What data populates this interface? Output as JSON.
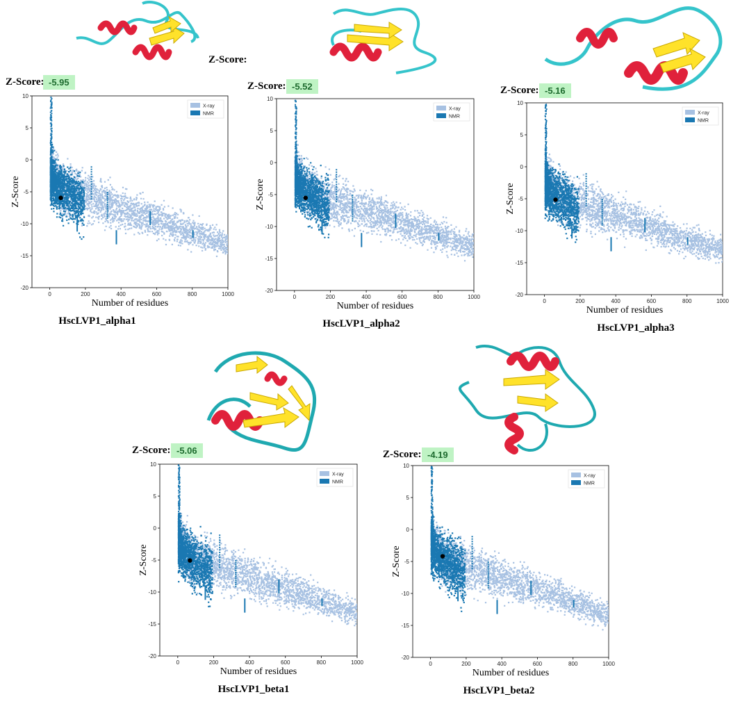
{
  "stray_label": "Z-Score:",
  "colors": {
    "xray": "#a7c1e2",
    "nmr": "#1a78b2",
    "point": "#000000",
    "badge_bg": "#bff3c4",
    "helix": "#e0213b",
    "sheet": "#ffe22a",
    "coil": "#35c4cb"
  },
  "chart_data": [
    {
      "type": "scatter",
      "title": "HscLVP1_alpha1",
      "xlabel": "Number of residues",
      "ylabel": "Z-Score",
      "xlim": [
        -100,
        1000
      ],
      "ylim": [
        -20,
        10
      ],
      "xticks": [
        "0",
        "200",
        "400",
        "600",
        "800",
        "1000"
      ],
      "yticks": [
        "10",
        "5",
        "0",
        "-5",
        "-10",
        "-15",
        "-20"
      ],
      "legend": [
        "X-ray",
        "NMR"
      ],
      "legend_position": "top-right",
      "zscore_label": "Z-Score:",
      "zscore": -5.95,
      "zscore_text": "-5.95",
      "query_point": {
        "x": 62,
        "y": -5.95
      }
    },
    {
      "type": "scatter",
      "title": "HscLVP1_alpha2",
      "xlabel": "Number of residues",
      "ylabel": "Z-Score",
      "xlim": [
        -100,
        1000
      ],
      "ylim": [
        -20,
        10
      ],
      "xticks": [
        "0",
        "200",
        "400",
        "600",
        "800",
        "1000"
      ],
      "yticks": [
        "10",
        "5",
        "0",
        "-5",
        "-10",
        "-15",
        "-20"
      ],
      "legend": [
        "X-ray",
        "NMR"
      ],
      "legend_position": "top-right",
      "zscore_label": "Z-Score:",
      "zscore": -5.52,
      "zscore_text": "-5.52",
      "query_point": {
        "x": 62,
        "y": -5.52
      }
    },
    {
      "type": "scatter",
      "title": "HscLVP1_alpha3",
      "xlabel": "Number of residues",
      "ylabel": "Z-Score",
      "xlim": [
        -100,
        1000
      ],
      "ylim": [
        -20,
        10
      ],
      "xticks": [
        "0",
        "200",
        "400",
        "600",
        "800",
        "1000"
      ],
      "yticks": [
        "10",
        "5",
        "0",
        "-5",
        "-10",
        "-15",
        "-20"
      ],
      "legend": [
        "X-ray",
        "NMR"
      ],
      "legend_position": "top-right",
      "zscore_label": "Z-Score:",
      "zscore": -5.16,
      "zscore_text": "-5.16",
      "query_point": {
        "x": 62,
        "y": -5.16
      }
    },
    {
      "type": "scatter",
      "title": "HscLVP1_beta1",
      "xlabel": "Number of residues",
      "ylabel": "Z-Score",
      "xlim": [
        -100,
        1000
      ],
      "ylim": [
        -20,
        10
      ],
      "xticks": [
        "0",
        "200",
        "400",
        "600",
        "800",
        "1000"
      ],
      "yticks": [
        "10",
        "5",
        "0",
        "-5",
        "-10",
        "-15",
        "-20"
      ],
      "legend": [
        "X-ray",
        "NMR"
      ],
      "legend_position": "top-right",
      "zscore_label": "Z-Score:",
      "zscore": -5.06,
      "zscore_text": "-5.06",
      "query_point": {
        "x": 68,
        "y": -5.06
      }
    },
    {
      "type": "scatter",
      "title": "HscLVP1_beta2",
      "xlabel": "Number of residues",
      "ylabel": "Z-Score",
      "xlim": [
        -100,
        1000
      ],
      "ylim": [
        -20,
        10
      ],
      "xticks": [
        "0",
        "200",
        "400",
        "600",
        "800",
        "1000"
      ],
      "yticks": [
        "10",
        "5",
        "0",
        "-5",
        "-10",
        "-15",
        "-20"
      ],
      "legend": [
        "X-ray",
        "NMR"
      ],
      "legend_position": "top-right",
      "zscore_label": "Z-Score:",
      "zscore": -4.19,
      "zscore_text": "-4.19",
      "query_point": {
        "x": 68,
        "y": -4.19
      }
    }
  ]
}
